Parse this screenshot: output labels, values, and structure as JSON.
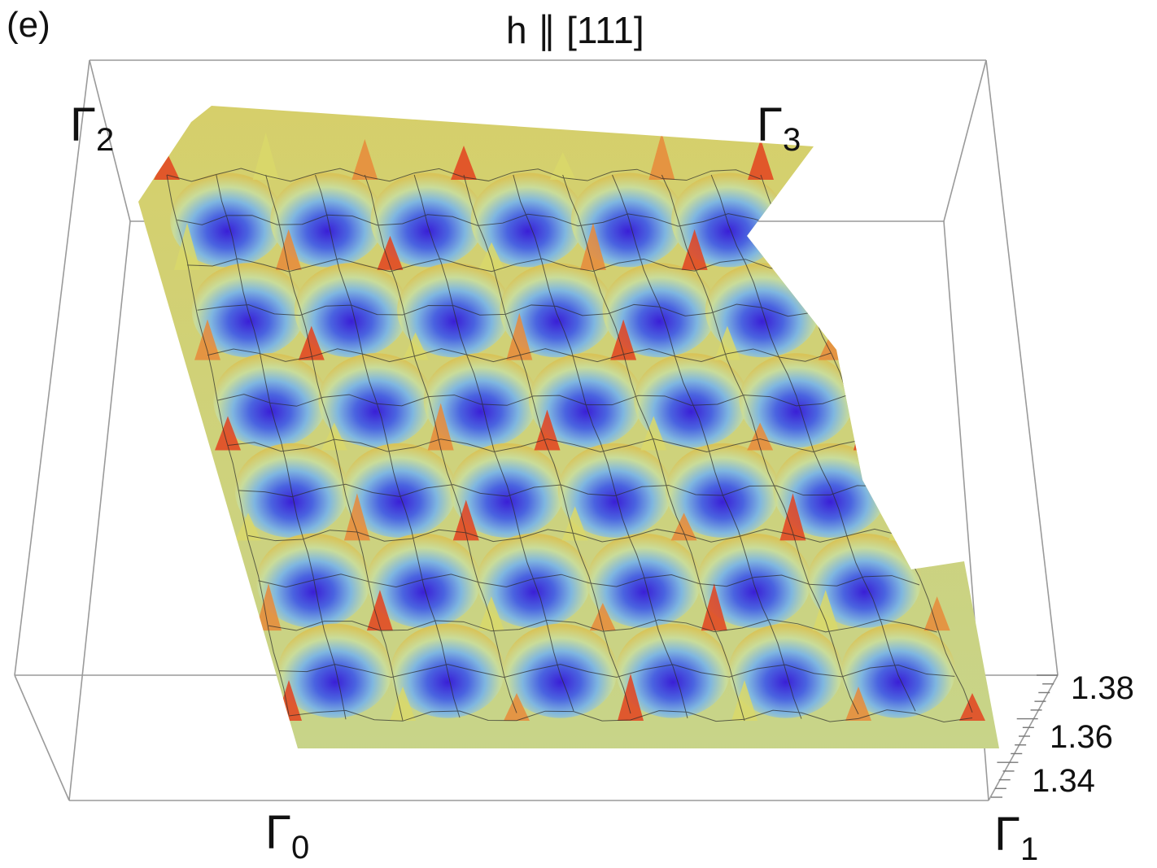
{
  "panel_label": "(e)",
  "title": "h ∥ [111]",
  "corner_labels": {
    "g0": {
      "base": "Γ",
      "sub": "0"
    },
    "g1": {
      "base": "Γ",
      "sub": "1"
    },
    "g2": {
      "base": "Γ",
      "sub": "2"
    },
    "g3": {
      "base": "Γ",
      "sub": "3"
    }
  },
  "colors": {
    "low": "#3a2bd8",
    "mid_low": "#5e8fe6",
    "mid": "#bfe3c4",
    "mid_high": "#d9d86a",
    "high": "#e3421e",
    "box_edge": "#9a9a9a",
    "mesh": "#2a2a2a"
  },
  "chart_data": {
    "type": "surface3d",
    "title": "h ∥ [111]",
    "z_ticks": [
      "1.38",
      "1.36",
      "1.34"
    ],
    "z_tick_values": [
      1.38,
      1.36,
      1.34
    ],
    "zlim": [
      1.33,
      1.385
    ],
    "x_range": [
      "Γ₀",
      "Γ₁"
    ],
    "y_range": [
      "Γ₀",
      "Γ₂"
    ],
    "colormap": "blue-green-yellow-red (low to high)",
    "lattice": "periodic minima arranged in 6 rows by 6 columns over the cell",
    "rows": 6,
    "cols": 6
  }
}
